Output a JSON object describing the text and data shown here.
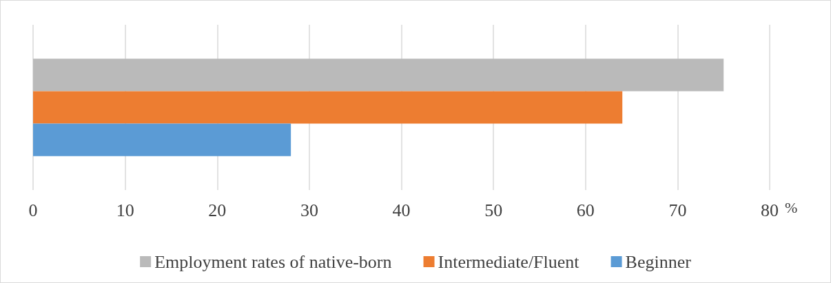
{
  "chart_data": {
    "type": "bar",
    "orientation": "horizontal",
    "categories": [
      null
    ],
    "xlabel": "%",
    "xlim": [
      0,
      80
    ],
    "xticks": [
      0,
      10,
      20,
      30,
      40,
      50,
      60,
      70,
      80
    ],
    "grid": "x",
    "legend": "bottom",
    "series": [
      {
        "name": "Employment rates of native-born",
        "color": "#bababa",
        "values": [
          75
        ]
      },
      {
        "name": "Intermediate/Fluent",
        "color": "#ed7d31",
        "values": [
          64
        ]
      },
      {
        "name": "Beginner",
        "color": "#5b9bd5",
        "values": [
          28
        ]
      }
    ]
  }
}
